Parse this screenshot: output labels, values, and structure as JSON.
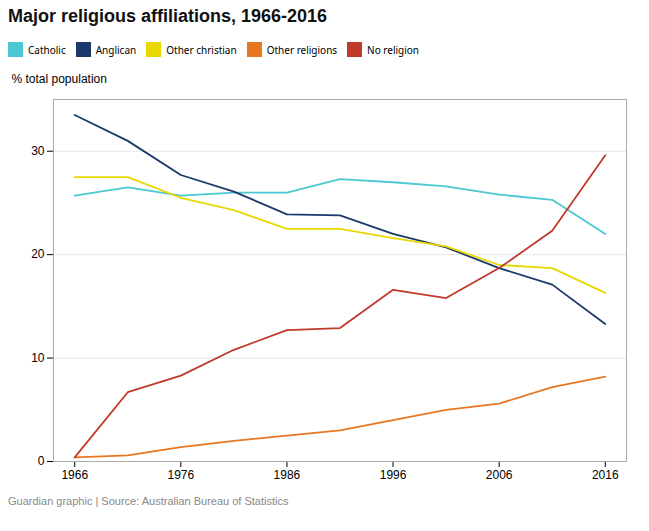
{
  "chart_data": {
    "type": "line",
    "title": "Major religious affiliations, 1966-2016",
    "ylabel": "% total population",
    "caption": "Guardian graphic | Source: Australian Bureau of Statistics",
    "x": [
      1966,
      1971,
      1976,
      1981,
      1986,
      1991,
      1996,
      2001,
      2006,
      2011,
      2016
    ],
    "series": [
      {
        "name": "Catholic",
        "color": "#4bc8d4",
        "values": [
          25.7,
          26.5,
          25.7,
          26.0,
          26.0,
          27.3,
          27.0,
          26.6,
          25.8,
          25.3,
          22.0
        ]
      },
      {
        "name": "Anglican",
        "color": "#1b3a6b",
        "values": [
          33.5,
          31.0,
          27.7,
          26.1,
          23.9,
          23.8,
          22.0,
          20.7,
          18.7,
          17.1,
          13.3
        ]
      },
      {
        "name": "Other christian",
        "color": "#e8d800",
        "values": [
          27.5,
          27.5,
          25.5,
          24.3,
          22.5,
          22.5,
          21.6,
          20.8,
          19.0,
          18.7,
          16.3
        ]
      },
      {
        "name": "Other religions",
        "color": "#e87722",
        "values": [
          0.4,
          0.6,
          1.4,
          2.0,
          2.5,
          3.0,
          4.0,
          5.0,
          5.6,
          7.2,
          8.2
        ]
      },
      {
        "name": "No religion",
        "color": "#c0392b",
        "values": [
          0.4,
          6.7,
          8.3,
          10.8,
          12.7,
          12.9,
          16.6,
          15.8,
          18.7,
          22.3,
          29.6
        ]
      }
    ],
    "xlim": [
      1964,
      2018
    ],
    "ylim": [
      0,
      35
    ],
    "xticks": [
      1966,
      1976,
      1986,
      1996,
      2006,
      2016
    ],
    "yticks": [
      0,
      10,
      20,
      30
    ],
    "grid": true,
    "legend": "top"
  }
}
